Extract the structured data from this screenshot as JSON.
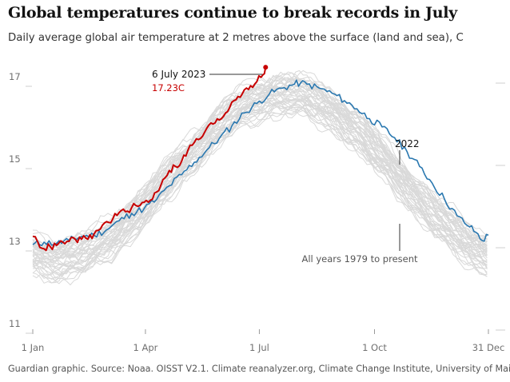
{
  "chart_data": {
    "type": "line",
    "title": "Global temperatures continue to break records in July",
    "subtitle": "Daily average global air temperature at 2 metres above the surface (land and sea), C",
    "source": "Guardian graphic. Source: Noaa. OISST V2.1. Climate reanalyzer.org, Climate Change Institute, University of Maine",
    "xlabel": "",
    "ylabel": "",
    "x_range_days": [
      1,
      365
    ],
    "ylim": [
      11,
      17.4
    ],
    "y_ticks": [
      {
        "value": 11,
        "label": "11"
      },
      {
        "value": 13,
        "label": "13"
      },
      {
        "value": 15,
        "label": "15"
      },
      {
        "value": 17,
        "label": "17"
      }
    ],
    "x_ticks": [
      {
        "day": 1,
        "label": "1 Jan"
      },
      {
        "day": 91,
        "label": "1 Apr"
      },
      {
        "day": 182,
        "label": "1 Jul"
      },
      {
        "day": 274,
        "label": "1 Oct"
      },
      {
        "day": 365,
        "label": "31 Dec"
      }
    ],
    "series": [
      {
        "name": "2023",
        "color": "#c70000",
        "points": [
          [
            1,
            13.12
          ],
          [
            5,
            12.98
          ],
          [
            10,
            12.82
          ],
          [
            15,
            12.87
          ],
          [
            20,
            12.9
          ],
          [
            25,
            12.98
          ],
          [
            30,
            13.0
          ],
          [
            35,
            13.05
          ],
          [
            40,
            13.05
          ],
          [
            45,
            13.05
          ],
          [
            50,
            13.18
          ],
          [
            55,
            13.3
          ],
          [
            60,
            13.48
          ],
          [
            65,
            13.55
          ],
          [
            70,
            13.7
          ],
          [
            75,
            13.72
          ],
          [
            80,
            13.82
          ],
          [
            85,
            13.85
          ],
          [
            90,
            13.95
          ],
          [
            95,
            14.0
          ],
          [
            100,
            14.2
          ],
          [
            105,
            14.5
          ],
          [
            110,
            14.72
          ],
          [
            115,
            14.82
          ],
          [
            120,
            14.95
          ],
          [
            125,
            15.22
          ],
          [
            130,
            15.4
          ],
          [
            135,
            15.5
          ],
          [
            140,
            15.75
          ],
          [
            145,
            15.85
          ],
          [
            150,
            15.95
          ],
          [
            155,
            16.12
          ],
          [
            160,
            16.38
          ],
          [
            165,
            16.52
          ],
          [
            170,
            16.68
          ],
          [
            175,
            16.78
          ],
          [
            180,
            16.88
          ],
          [
            185,
            17.05
          ],
          [
            187,
            17.23
          ]
        ]
      },
      {
        "name": "2022",
        "color": "#2a78b0",
        "points": [
          [
            1,
            12.92
          ],
          [
            10,
            12.98
          ],
          [
            20,
            12.95
          ],
          [
            30,
            13.02
          ],
          [
            40,
            13.12
          ],
          [
            50,
            13.15
          ],
          [
            60,
            13.28
          ],
          [
            70,
            13.5
          ],
          [
            80,
            13.68
          ],
          [
            90,
            13.8
          ],
          [
            100,
            14.02
          ],
          [
            110,
            14.35
          ],
          [
            120,
            14.62
          ],
          [
            130,
            14.92
          ],
          [
            140,
            15.22
          ],
          [
            150,
            15.5
          ],
          [
            160,
            15.8
          ],
          [
            170,
            16.12
          ],
          [
            180,
            16.35
          ],
          [
            190,
            16.58
          ],
          [
            200,
            16.72
          ],
          [
            210,
            16.82
          ],
          [
            215,
            16.85
          ],
          [
            220,
            16.82
          ],
          [
            230,
            16.72
          ],
          [
            240,
            16.6
          ],
          [
            250,
            16.42
          ],
          [
            260,
            16.22
          ],
          [
            270,
            15.98
          ],
          [
            280,
            15.78
          ],
          [
            290,
            15.52
          ],
          [
            300,
            15.18
          ],
          [
            310,
            14.82
          ],
          [
            320,
            14.42
          ],
          [
            330,
            14.02
          ],
          [
            340,
            13.62
          ],
          [
            350,
            13.35
          ],
          [
            355,
            13.22
          ],
          [
            360,
            13.02
          ],
          [
            365,
            13.15
          ]
        ]
      }
    ],
    "background_series": {
      "name": "All years 1979 to present",
      "years": "1979-2021",
      "color": "#d9d9d9",
      "count": 43
    },
    "annotations": [
      {
        "label": "6 July 2023",
        "value_label": "17.23C",
        "day": 187,
        "value": 17.23
      },
      {
        "label": "2022",
        "day": 303,
        "value": 15.05
      },
      {
        "label": "All years 1979 to present",
        "day": 303,
        "value": 14.15
      }
    ]
  }
}
